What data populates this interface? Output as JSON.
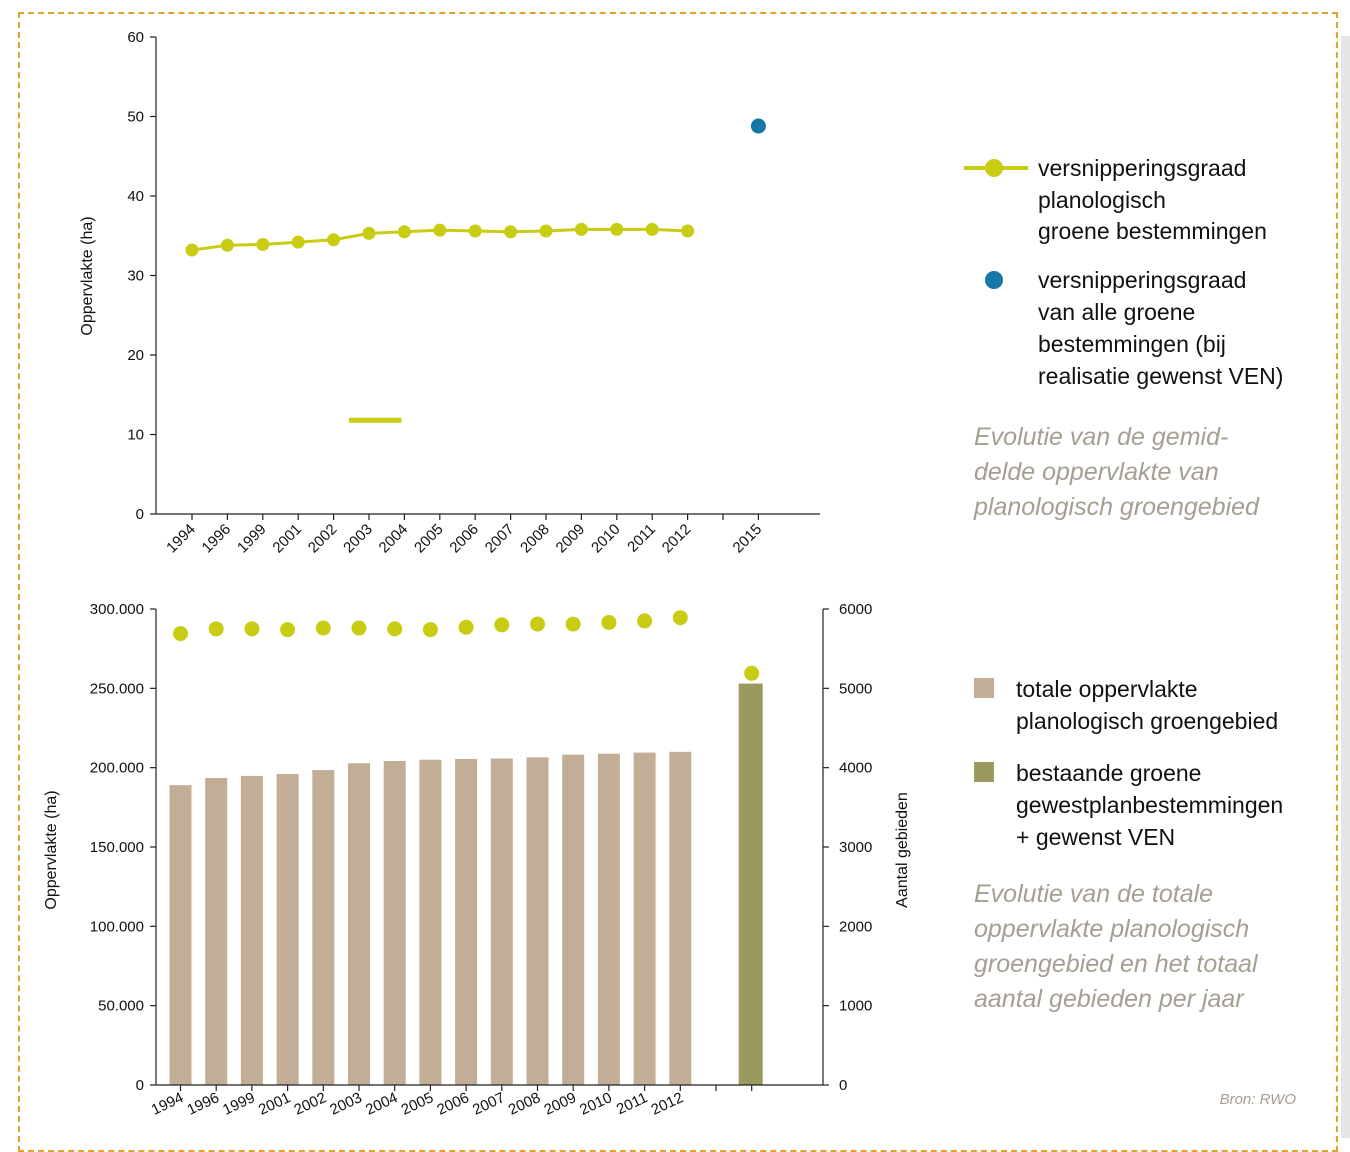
{
  "colors": {
    "line": "#c8cc12",
    "blue": "#1477a8",
    "bar_tan": "#c2ae96",
    "bar_olive": "#9a9a5e",
    "caption": "#a59f92",
    "frame": "#e3a22d"
  },
  "top_chart": {
    "ylabel": "Oppervlakte (ha)",
    "legend": {
      "line_label": [
        "versnipperingsgraad",
        "planologisch",
        "groene bestemmingen"
      ],
      "dot_label": [
        "versnipperingsgraad",
        "van alle groene",
        "bestemmingen (bij",
        "realisatie gewenst VEN)"
      ]
    },
    "caption": [
      "Evolutie van de gemid-",
      "delde oppervlakte van",
      "planologisch groengebied"
    ]
  },
  "bottom_chart": {
    "ylabel_left": "Oppervlakte (ha)",
    "ylabel_right": "Aantal gebieden",
    "legend": {
      "tan_label": [
        "totale oppervlakte",
        "planologisch groengebied"
      ],
      "olive_label": [
        "bestaande groene",
        "gewestplanbestemmingen",
        "+ gewenst VEN"
      ]
    },
    "caption": [
      "Evolutie van de totale",
      "oppervlakte planologisch",
      "groengebied en het totaal",
      "aantal gebieden per jaar"
    ],
    "source": "Bron: RWO"
  },
  "chart_data": [
    {
      "type": "line",
      "x": [
        "1994",
        "1996",
        "1999",
        "2001",
        "2002",
        "2003",
        "2004",
        "2005",
        "2006",
        "2007",
        "2008",
        "2009",
        "2010",
        "2011",
        "2012",
        "",
        "2015"
      ],
      "yticks": [
        "0",
        "10",
        "20",
        "30",
        "40",
        "50",
        "60"
      ],
      "ylim": [
        0,
        60
      ],
      "ylabel": "Oppervlakte (ha)",
      "series": [
        {
          "name": "versnipperingsgraad planologisch groene bestemmingen",
          "values": [
            33.2,
            33.8,
            33.9,
            34.2,
            34.5,
            35.3,
            35.5,
            35.7,
            35.6,
            35.5,
            35.6,
            35.8,
            35.8,
            35.8,
            35.6,
            null,
            null
          ]
        },
        {
          "name": "versnipperingsgraad van alle groene bestemmingen (bij realisatie gewenst VEN)",
          "values": [
            null,
            null,
            null,
            null,
            null,
            null,
            null,
            null,
            null,
            null,
            null,
            null,
            null,
            null,
            null,
            null,
            48.8
          ]
        }
      ],
      "annotation_segment": {
        "x_from": "2003",
        "x_to": "2004",
        "y": 11.8
      }
    },
    {
      "type": "bar",
      "categories": [
        "1994",
        "1996",
        "1999",
        "2001",
        "2002",
        "2003",
        "2004",
        "2005",
        "2006",
        "2007",
        "2008",
        "2009",
        "2010",
        "2011",
        "2012",
        "",
        ""
      ],
      "yticks_left": [
        "0",
        "50.000",
        "100.000",
        "150.000",
        "200.000",
        "250.000",
        "300.000"
      ],
      "yticks_right": [
        "0",
        "1000",
        "2000",
        "3000",
        "4000",
        "5000",
        "6000"
      ],
      "ylim_left": [
        0,
        300000
      ],
      "ylim_right": [
        0,
        6000
      ],
      "ylabel_left": "Oppervlakte (ha)",
      "ylabel_right": "Aantal gebieden",
      "series": [
        {
          "name": "totale oppervlakte planologisch groengebied",
          "axis": "left",
          "type": "bar",
          "values": [
            189000,
            193500,
            194800,
            196000,
            198500,
            202800,
            204200,
            205000,
            205500,
            205800,
            206500,
            208200,
            208800,
            209500,
            210000,
            null,
            null
          ]
        },
        {
          "name": "bestaande groene gewestplanbestemmingen + gewenst VEN",
          "axis": "left",
          "type": "bar",
          "values": [
            null,
            null,
            null,
            null,
            null,
            null,
            null,
            null,
            null,
            null,
            null,
            null,
            null,
            null,
            null,
            null,
            253000
          ]
        },
        {
          "axis": "right",
          "type": "scatter",
          "values": [
            5690,
            5750,
            5750,
            5740,
            5760,
            5760,
            5750,
            5740,
            5770,
            5800,
            5810,
            5810,
            5830,
            5850,
            5890,
            null,
            5190
          ]
        }
      ]
    }
  ]
}
